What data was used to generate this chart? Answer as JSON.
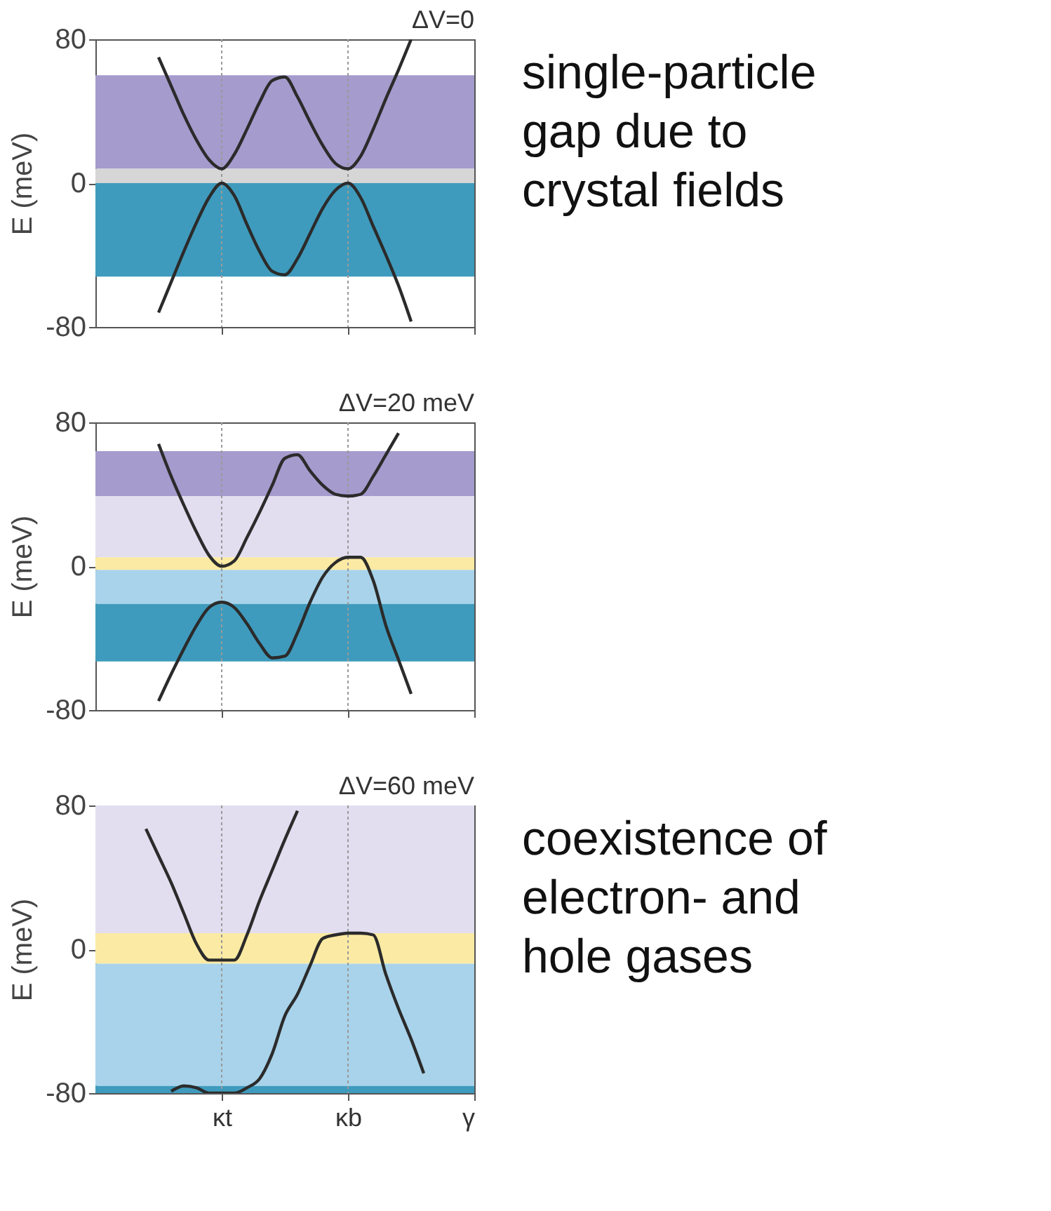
{
  "chart_data": [
    {
      "type": "line",
      "title": "ΔV=0",
      "ylabel": "E (meV)",
      "ylim": [
        -80,
        80
      ],
      "yticks": [
        -80,
        0,
        80
      ],
      "categories": [
        null,
        null,
        null,
        null,
        null,
        null,
        null,
        null,
        null,
        null,
        "κt",
        null,
        null,
        null,
        null,
        null,
        null,
        null,
        null,
        null,
        "κb",
        null,
        null,
        null,
        null,
        null,
        null,
        null,
        null,
        null,
        "γ"
      ],
      "tick_labels": "y",
      "grid": false,
      "line_style": "solid",
      "marker": "none",
      "bands": [
        {
          "axis": "y",
          "from": 8,
          "to": 60,
          "color": "#a59bcd"
        },
        {
          "axis": "y",
          "from": 0,
          "to": 8,
          "color": "#d6d6d6"
        },
        {
          "axis": "y",
          "from": -52,
          "to": 0,
          "color": "#3f9bbd"
        }
      ],
      "ref_lines": [
        {
          "axis": "x",
          "value": "κt",
          "color": "#999999",
          "line_style": "dotted"
        },
        {
          "axis": "x",
          "value": "κb",
          "color": "#999999",
          "line_style": "dotted"
        }
      ],
      "series": [
        {
          "color": "#2b2b2b",
          "values": [
            null,
            null,
            null,
            null,
            null,
            70,
            54,
            38,
            24,
            13,
            8,
            16,
            30,
            45,
            57,
            59,
            48,
            34,
            21,
            11,
            8,
            15,
            30,
            47,
            63,
            80,
            null,
            null,
            null,
            null,
            null
          ]
        },
        {
          "color": "#2b2b2b",
          "values": [
            null,
            null,
            null,
            null,
            null,
            -72,
            -55,
            -38,
            -22,
            -8,
            0,
            -7,
            -23,
            -38,
            -49,
            -51,
            -42,
            -28,
            -14,
            -4,
            0,
            -8,
            -24,
            -40,
            -57,
            -77,
            null,
            null,
            null,
            null,
            null
          ]
        }
      ],
      "annotations": [
        "single-particle gap due to crystal fields"
      ]
    },
    {
      "type": "line",
      "title": "ΔV=20 meV",
      "ylabel": "E (meV)",
      "ylim": [
        -80,
        80
      ],
      "yticks": [
        -80,
        0,
        80
      ],
      "categories": [
        null,
        null,
        null,
        null,
        null,
        null,
        null,
        null,
        null,
        null,
        "κt",
        null,
        null,
        null,
        null,
        null,
        null,
        null,
        null,
        null,
        "κb",
        null,
        null,
        null,
        null,
        null,
        null,
        null,
        null,
        null,
        "γ"
      ],
      "tick_labels": "y",
      "grid": false,
      "line_style": "solid",
      "marker": "none",
      "bands": [
        {
          "axis": "y",
          "from": 39,
          "to": 64,
          "color": "#a59bcd"
        },
        {
          "axis": "y",
          "from": 5,
          "to": 39,
          "color": "#e2def0"
        },
        {
          "axis": "y",
          "from": -2,
          "to": 5,
          "color": "#fbeaa3"
        },
        {
          "axis": "y",
          "from": -21,
          "to": -2,
          "color": "#a8d3ea"
        },
        {
          "axis": "y",
          "from": -53,
          "to": -21,
          "color": "#3f9bbd"
        }
      ],
      "ref_lines": [
        {
          "axis": "x",
          "value": "κt",
          "color": "#999999",
          "line_style": "dotted"
        },
        {
          "axis": "x",
          "value": "κb",
          "color": "#999999",
          "line_style": "dotted"
        }
      ],
      "series": [
        {
          "color": "#2b2b2b",
          "values": [
            null,
            null,
            null,
            null,
            null,
            68,
            50,
            34,
            19,
            6,
            0,
            3,
            16,
            30,
            45,
            60,
            62,
            53,
            45,
            40,
            39,
            40,
            50,
            62,
            74,
            null,
            null,
            null,
            null,
            null,
            null
          ]
        },
        {
          "color": "#2b2b2b",
          "values": [
            null,
            null,
            null,
            null,
            null,
            -75,
            -60,
            -46,
            -33,
            -23,
            -20,
            -23,
            -32,
            -43,
            -51,
            -50,
            -37,
            -20,
            -6,
            2,
            5,
            5,
            -8,
            -33,
            -52,
            -71,
            null,
            null,
            null,
            null,
            null
          ]
        }
      ]
    },
    {
      "type": "line",
      "title": "ΔV=60 meV",
      "ylabel": "E (meV)",
      "ylim": [
        -80,
        80
      ],
      "yticks": [
        -80,
        0,
        80
      ],
      "categories": [
        null,
        null,
        null,
        null,
        null,
        null,
        null,
        null,
        null,
        null,
        "κt",
        null,
        null,
        null,
        null,
        null,
        null,
        null,
        null,
        null,
        "κb",
        null,
        null,
        null,
        null,
        null,
        null,
        null,
        null,
        null,
        "γ"
      ],
      "grid": false,
      "line_style": "solid",
      "marker": "none",
      "bands": [
        {
          "axis": "y",
          "from": 9,
          "to": 80,
          "color": "#e2def0"
        },
        {
          "axis": "y",
          "from": -8,
          "to": 9,
          "color": "#fbeaa3"
        },
        {
          "axis": "y",
          "from": -76,
          "to": -8,
          "color": "#a8d3ea"
        },
        {
          "axis": "y",
          "from": -80,
          "to": -76,
          "color": "#3f9bbd"
        }
      ],
      "ref_lines": [
        {
          "axis": "x",
          "value": "κt",
          "color": "#999999",
          "line_style": "dotted"
        },
        {
          "axis": "x",
          "value": "κb",
          "color": "#999999",
          "line_style": "dotted"
        }
      ],
      "series": [
        {
          "color": "#2b2b2b",
          "values": [
            null,
            null,
            null,
            null,
            67,
            52,
            37,
            20,
            3,
            -6,
            -6,
            -6,
            8,
            27,
            44,
            61,
            77,
            null,
            null,
            null,
            null,
            null,
            null,
            null,
            null,
            null,
            null,
            null,
            null,
            null,
            null
          ]
        },
        {
          "color": "#2b2b2b",
          "values": [
            null,
            null,
            null,
            null,
            null,
            null,
            -79,
            -76,
            -77,
            -80,
            -80,
            -80,
            -77,
            -72,
            -58,
            -37,
            -25,
            -9,
            6,
            8,
            9,
            9,
            8,
            -14,
            -33,
            -50,
            -69,
            null,
            null,
            null,
            null
          ]
        }
      ],
      "annotations": [
        "coexistence of electron- and hole gases"
      ]
    }
  ]
}
